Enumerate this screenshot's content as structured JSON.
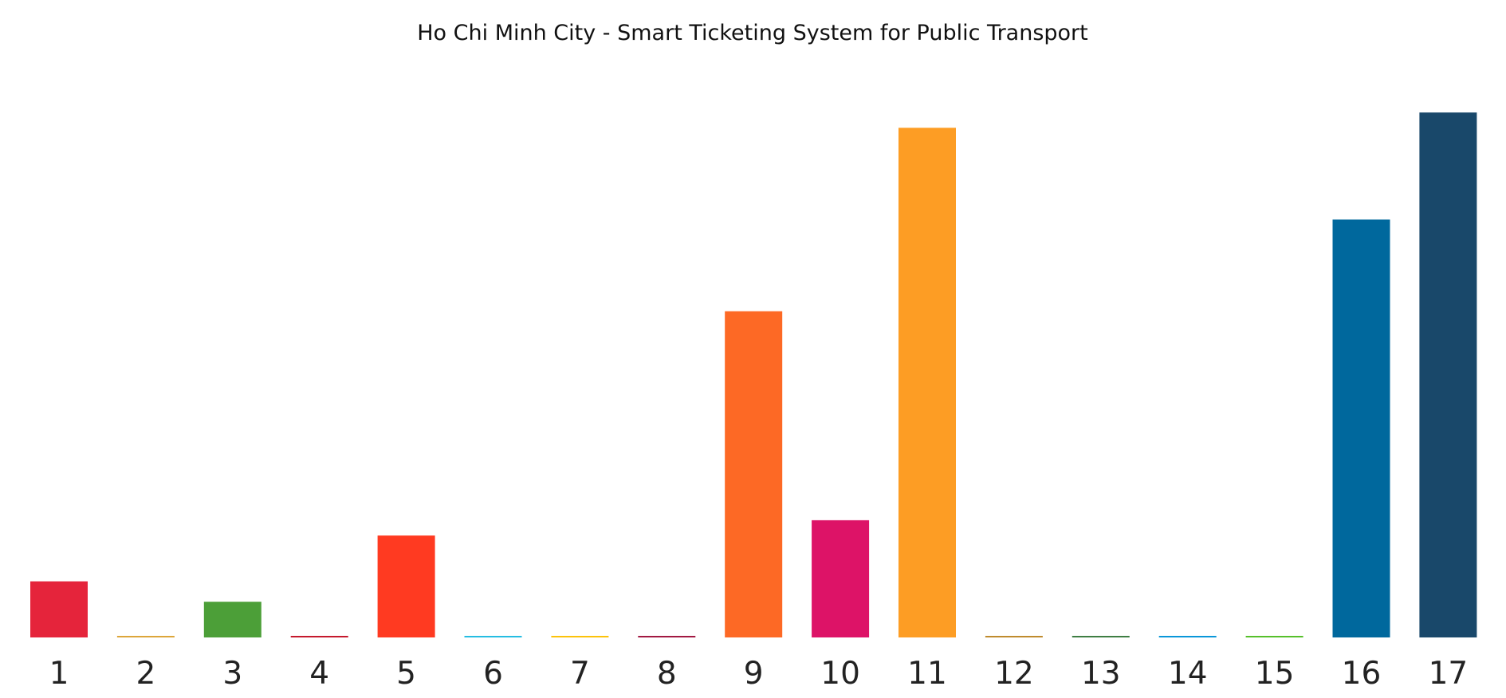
{
  "chart_data": {
    "type": "bar",
    "title": "Ho Chi Minh City - Smart Ticketing System for Public Transport",
    "xlabel": "",
    "ylabel": "",
    "categories": [
      "1",
      "2",
      "3",
      "4",
      "5",
      "6",
      "7",
      "8",
      "9",
      "10",
      "11",
      "12",
      "13",
      "14",
      "15",
      "16",
      "17"
    ],
    "values": [
      11,
      0.3,
      7,
      0.3,
      20,
      0.3,
      0.3,
      0.3,
      64,
      23,
      100,
      0.3,
      0.3,
      0.3,
      0.3,
      82,
      103
    ],
    "colors": [
      "#E5243B",
      "#DDA63A",
      "#4C9F38",
      "#C5192D",
      "#FF3A21",
      "#26BDE2",
      "#FCC30B",
      "#A21942",
      "#FD6925",
      "#DD1367",
      "#FD9D24",
      "#BF8B2E",
      "#3F7E44",
      "#0A97D9",
      "#56C02B",
      "#00689D",
      "#19486A"
    ],
    "ylim": [
      0,
      106
    ],
    "grid": false,
    "legend": "none"
  }
}
